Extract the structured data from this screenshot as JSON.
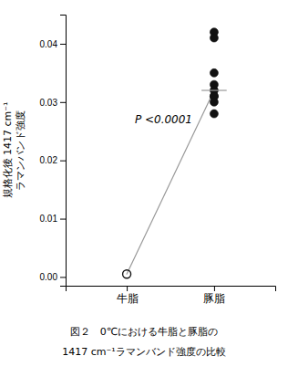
{
  "chart_data": {
    "type": "scatter",
    "categories": [
      "牛脂",
      "豚脂"
    ],
    "series": [
      {
        "type": "scatter",
        "marker": "circle-open",
        "color": "#111111",
        "x": [
          "牛脂"
        ],
        "values": [
          0.0005
        ]
      },
      {
        "type": "scatter",
        "marker": "circle",
        "color": "#111111",
        "x": [
          "豚脂",
          "豚脂",
          "豚脂",
          "豚脂",
          "豚脂",
          "豚脂",
          "豚脂",
          "豚脂",
          "豚脂"
        ],
        "values": [
          0.042,
          0.041,
          0.035,
          0.033,
          0.032,
          0.031,
          0.031,
          0.03,
          0.028
        ]
      },
      {
        "type": "line",
        "color": "#999999",
        "x": [
          "牛脂",
          "豚脂"
        ],
        "values": [
          0.0005,
          0.032
        ]
      },
      {
        "type": "scatter",
        "marker": "dash",
        "color": "#999999",
        "x": [
          "豚脂"
        ],
        "values": [
          0.032
        ]
      }
    ],
    "ylim": [
      -0.0015,
      0.045
    ],
    "yticks": [
      {
        "value": 0.0,
        "label": "0.00"
      },
      0.01,
      0.02,
      0.03,
      0.04
    ],
    "ylabel": [
      "規格化後 1417 cm⁻¹",
      "ラマンバンド強度"
    ],
    "annotation": "P <0.0001",
    "caption": [
      "図２　0℃における牛脂と豚脂の",
      "1417 cm⁻¹ラマンバンド強度の比較"
    ]
  }
}
